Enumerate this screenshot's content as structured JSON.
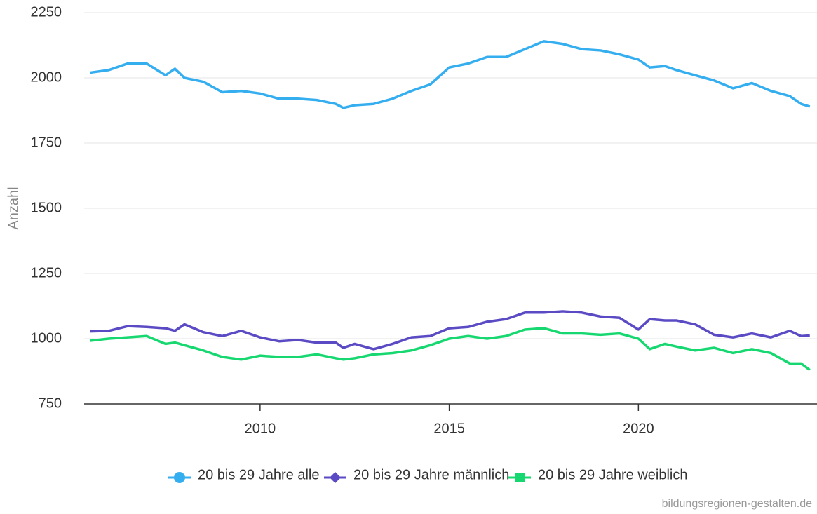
{
  "chart_data": {
    "type": "line",
    "y_label": "Anzahl",
    "source": "bildungsregionen-gestalten.de",
    "x": [
      2005.5,
      2006.0,
      2006.5,
      2007.0,
      2007.5,
      2007.75,
      2008.0,
      2008.5,
      2009.0,
      2009.5,
      2010.0,
      2010.5,
      2011.0,
      2011.5,
      2012.0,
      2012.2,
      2012.5,
      2013.0,
      2013.5,
      2014.0,
      2014.5,
      2015.0,
      2015.5,
      2016.0,
      2016.5,
      2017.0,
      2017.5,
      2018.0,
      2018.5,
      2019.0,
      2019.5,
      2020.0,
      2020.3,
      2020.7,
      2021.0,
      2021.5,
      2022.0,
      2022.5,
      2023.0,
      2023.5,
      2024.0,
      2024.3,
      2024.53
    ],
    "series": [
      {
        "name": "20 bis 29 Jahre alle",
        "color": "#35aef0",
        "marker": "circle",
        "values": [
          2020,
          2030,
          2055,
          2055,
          2010,
          2035,
          2000,
          1985,
          1945,
          1950,
          1940,
          1920,
          1920,
          1915,
          1900,
          1885,
          1895,
          1900,
          1920,
          1950,
          1975,
          2040,
          2055,
          2080,
          2080,
          2110,
          2140,
          2130,
          2110,
          2105,
          2090,
          2070,
          2040,
          2045,
          2030,
          2010,
          1990,
          1960,
          1980,
          1950,
          1930,
          1900,
          1890
        ]
      },
      {
        "name": "20 bis 29 Jahre männlich",
        "color": "#5a4bc4",
        "marker": "diamond",
        "values": [
          1028,
          1030,
          1048,
          1045,
          1040,
          1030,
          1055,
          1025,
          1010,
          1030,
          1005,
          990,
          995,
          985,
          985,
          965,
          980,
          960,
          980,
          1005,
          1010,
          1040,
          1045,
          1065,
          1075,
          1100,
          1100,
          1105,
          1100,
          1085,
          1080,
          1035,
          1075,
          1070,
          1070,
          1055,
          1015,
          1005,
          1020,
          1005,
          1030,
          1010,
          1012
        ]
      },
      {
        "name": "20 bis 29 Jahre weiblich",
        "color": "#17d870",
        "marker": "square",
        "values": [
          992,
          1000,
          1005,
          1010,
          980,
          985,
          975,
          955,
          930,
          920,
          935,
          930,
          930,
          940,
          925,
          920,
          925,
          940,
          945,
          955,
          975,
          1000,
          1010,
          1000,
          1010,
          1035,
          1040,
          1020,
          1020,
          1015,
          1020,
          1000,
          960,
          980,
          970,
          955,
          965,
          945,
          960,
          945,
          905,
          905,
          880
        ]
      }
    ],
    "xlim": [
      2005.35,
      2024.72
    ],
    "xticks": [
      2010,
      2015,
      2020
    ],
    "ylim": [
      750,
      2250
    ],
    "yticks": [
      750,
      1000,
      1250,
      1500,
      1750,
      2000,
      2250
    ],
    "grid": true,
    "legend": "bottom"
  }
}
